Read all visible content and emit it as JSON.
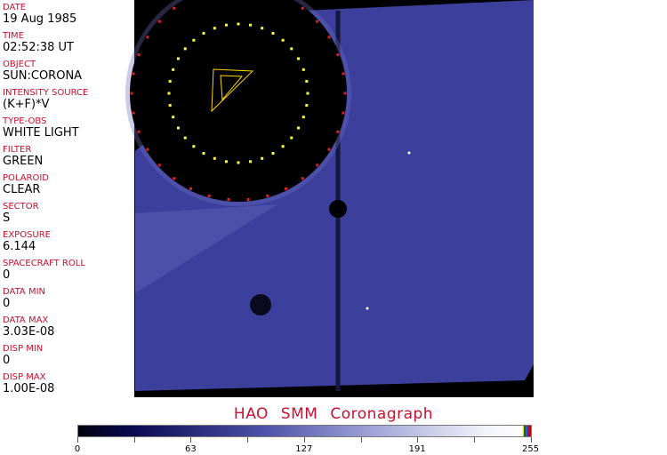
{
  "fields": [
    {
      "label": "DATE",
      "value": "19 Aug 1985"
    },
    {
      "label": "TIME",
      "value": "02:52:38 UT"
    },
    {
      "label": "OBJECT",
      "value": "SUN:CORONA"
    },
    {
      "label": "INTENSITY SOURCE",
      "value": "(K+F)*V"
    },
    {
      "label": "TYPE-OBS",
      "value": "WHITE LIGHT"
    },
    {
      "label": "FILTER",
      "value": "GREEN"
    },
    {
      "label": "POLAROID",
      "value": "CLEAR"
    },
    {
      "label": "SECTOR",
      "value": "S"
    },
    {
      "label": "EXPOSURE",
      "value": "6.144"
    },
    {
      "label": "SPACECRAFT ROLL",
      "value": "0"
    },
    {
      "label": "DATA MIN",
      "value": "0"
    },
    {
      "label": "DATA MAX",
      "value": "3.03E-08"
    },
    {
      "label": "DISP MIN",
      "value": "0"
    },
    {
      "label": "DISP MAX",
      "value": "1.00E-08"
    }
  ],
  "title": "HAO  SMM Coronagraph",
  "colorbar": {
    "ticks": [
      "0",
      "63",
      "127",
      "191",
      "255"
    ],
    "colors": {
      "low": "#000010",
      "mid": "#4a4fa8",
      "high": "#ffffff"
    }
  },
  "colors": {
    "label": "#c8102e",
    "image_blue": "#3c409c"
  }
}
